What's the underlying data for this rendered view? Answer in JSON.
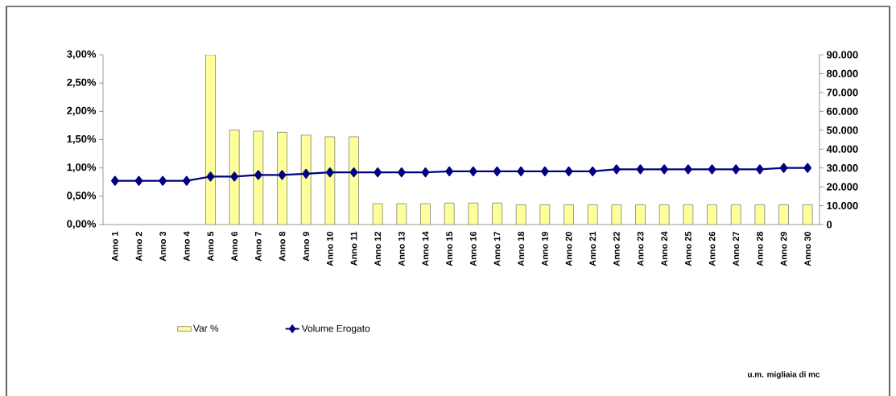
{
  "chart_data": {
    "type": "bar",
    "categories": [
      "Anno 1",
      "Anno 2",
      "Anno 3",
      "Anno 4",
      "Anno 5",
      "Anno 6",
      "Anno 7",
      "Anno 8",
      "Anno 9",
      "Anno 10",
      "Anno 11",
      "Anno 12",
      "Anno 13",
      "Anno 14",
      "Anno 15",
      "Anno 16",
      "Anno 17",
      "Anno 18",
      "Anno 19",
      "Anno 20",
      "Anno 21",
      "Anno 22",
      "Anno 23",
      "Anno 24",
      "Anno 25",
      "Anno 26",
      "Anno 27",
      "Anno 28",
      "Anno 29",
      "Anno 30"
    ],
    "series": [
      {
        "name": "Var %",
        "type": "bar",
        "color": "#ffff99",
        "values": [
          null,
          null,
          null,
          null,
          3.0,
          1.67,
          1.65,
          1.63,
          1.58,
          1.55,
          1.55,
          0.37,
          0.37,
          0.37,
          0.38,
          0.38,
          0.38,
          0.35,
          0.35,
          0.35,
          0.35,
          0.35,
          0.35,
          0.35,
          0.35,
          0.35,
          0.35,
          0.35,
          0.35,
          0.35
        ]
      },
      {
        "name": "Volume Erogato",
        "type": "line",
        "axis": "y2",
        "color": "#000080",
        "values": [
          23200,
          23200,
          23200,
          23200,
          25400,
          25400,
          26300,
          26300,
          26900,
          27700,
          27700,
          27700,
          27700,
          27700,
          28200,
          28200,
          28200,
          28200,
          28200,
          28200,
          28200,
          29300,
          29300,
          29300,
          29300,
          29300,
          29300,
          29300,
          30000,
          30000
        ]
      }
    ],
    "ylim": [
      0,
      3
    ],
    "yticks": [
      {
        "value": 0,
        "label": "0,00%"
      },
      {
        "value": 0.5,
        "label": "0,50%"
      },
      {
        "value": 1,
        "label": "1,00%"
      },
      {
        "value": 1.5,
        "label": "1,50%"
      },
      {
        "value": 2,
        "label": "2,00%"
      },
      {
        "value": 2.5,
        "label": "2,50%"
      },
      {
        "value": 3,
        "label": "3,00%"
      }
    ],
    "y2lim": [
      0,
      90000
    ],
    "y2ticks": [
      0,
      {
        "value": 10000,
        "label": "10.000"
      },
      {
        "value": 20000,
        "label": "20.000"
      },
      {
        "value": 30000,
        "label": "30.000"
      },
      {
        "value": 40000,
        "label": "40.000"
      },
      {
        "value": 50000,
        "label": "50.000"
      },
      {
        "value": 60000,
        "label": "60.000"
      },
      {
        "value": 70000,
        "label": "70.000"
      },
      {
        "value": 80000,
        "label": "80.000"
      },
      {
        "value": 90000,
        "label": "90.000"
      }
    ],
    "marker": "diamond",
    "legend": "bottom",
    "annotations": [
      "u.m. migliaia di mc"
    ]
  }
}
